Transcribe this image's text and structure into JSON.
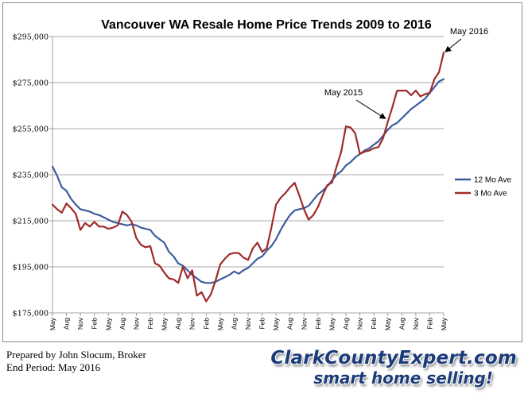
{
  "chart_data": {
    "type": "line",
    "title": "Vancouver WA Resale Home Price Trends 2009 to 2016",
    "xlabel": "",
    "ylabel": "",
    "ylim": [
      175000,
      295000
    ],
    "yticks": [
      "$175,000",
      "$195,000",
      "$215,000",
      "$235,000",
      "$255,000",
      "$275,000",
      "$295,000"
    ],
    "ytick_values": [
      175000,
      195000,
      215000,
      235000,
      255000,
      275000,
      295000
    ],
    "grid": true,
    "legend_position": "right",
    "x": [
      "May",
      "Jun",
      "Jul",
      "Aug",
      "Sep",
      "Oct",
      "Nov",
      "Dec",
      "Jan",
      "Feb",
      "Mar",
      "Apr",
      "May",
      "Jun",
      "Jul",
      "Aug",
      "Sep",
      "Oct",
      "Nov",
      "Dec",
      "Jan",
      "Feb",
      "Mar",
      "Apr",
      "May",
      "Jun",
      "Jul",
      "Aug",
      "Sep",
      "Oct",
      "Nov",
      "Dec",
      "Jan",
      "Feb",
      "Mar",
      "Apr",
      "May",
      "Jun",
      "Jul",
      "Aug",
      "Sep",
      "Oct",
      "Nov",
      "Dec",
      "Jan",
      "Feb",
      "Mar",
      "Apr",
      "May",
      "Jun",
      "Jul",
      "Aug",
      "Sep",
      "Oct",
      "Nov",
      "Dec",
      "Jan",
      "Feb",
      "Mar",
      "Apr",
      "May",
      "Jun",
      "Jul",
      "Aug",
      "Sep",
      "Oct",
      "Nov",
      "Dec",
      "Jan",
      "Feb",
      "Mar",
      "Apr",
      "May",
      "Jun",
      "Jul",
      "Aug",
      "Sep",
      "Oct",
      "Nov",
      "Dec",
      "Jan",
      "Feb",
      "Mar",
      "Apr",
      "May"
    ],
    "x_tick_labels": [
      "May",
      "Aug",
      "Nov",
      "Feb",
      "May",
      "Aug",
      "Nov",
      "Feb",
      "May",
      "Aug",
      "Nov",
      "Feb",
      "May",
      "Aug",
      "Nov",
      "Feb",
      "May",
      "Aug",
      "Nov",
      "Feb",
      "May",
      "Aug",
      "Nov",
      "Feb",
      "May",
      "Aug",
      "Nov",
      "Feb",
      "May"
    ],
    "series": [
      {
        "name": "12 Mo Ave",
        "color": "#3b5d9e",
        "values": [
          238500,
          234500,
          229500,
          228000,
          224500,
          222000,
          220000,
          219500,
          219000,
          218000,
          217500,
          216500,
          215500,
          214500,
          214000,
          213500,
          213000,
          213500,
          213000,
          212000,
          211500,
          211000,
          208500,
          207000,
          205500,
          201500,
          199500,
          196500,
          195500,
          193500,
          191500,
          190000,
          188500,
          188000,
          188000,
          188500,
          189500,
          190500,
          191500,
          193000,
          192000,
          193500,
          194500,
          196500,
          198500,
          199500,
          202000,
          204000,
          207000,
          211000,
          214500,
          217500,
          219500,
          220000,
          220500,
          221500,
          224000,
          226500,
          228000,
          230000,
          232500,
          235000,
          236500,
          239000,
          240500,
          242500,
          244000,
          245500,
          246500,
          248000,
          249500,
          252000,
          254500,
          256500,
          257500,
          259500,
          261500,
          263500,
          265000,
          266500,
          268000,
          270500,
          273000,
          275500,
          276500
        ]
      },
      {
        "name": "3 Mo Ave",
        "color": "#a02a2a",
        "values": [
          222000,
          220000,
          218500,
          222500,
          220500,
          218000,
          211000,
          214000,
          212500,
          214500,
          212500,
          212500,
          211500,
          212000,
          213000,
          219000,
          217500,
          214500,
          207500,
          204500,
          203500,
          204000,
          196500,
          195500,
          192500,
          190000,
          189500,
          188000,
          195000,
          190000,
          193500,
          182500,
          184000,
          180000,
          183000,
          189000,
          196000,
          198500,
          200500,
          201000,
          201000,
          199000,
          198000,
          203000,
          205500,
          201500,
          203000,
          212000,
          222000,
          225000,
          227000,
          229500,
          231500,
          226000,
          220000,
          215500,
          217500,
          221000,
          226000,
          230500,
          231500,
          238500,
          245000,
          256000,
          255500,
          253000,
          244000,
          245000,
          245500,
          246500,
          247000,
          251000,
          258000,
          264500,
          271500,
          271500,
          271500,
          269500,
          271500,
          269000,
          270000,
          270500,
          276500,
          279500,
          288000
        ]
      }
    ],
    "annotations": [
      {
        "text": "May 2015",
        "at_index": 72,
        "points_to": "3 Mo Ave"
      },
      {
        "text": "May 2016",
        "at_index": 84,
        "points_to": "3 Mo Ave"
      }
    ]
  },
  "footer": {
    "line1": "Prepared by John Slocum, Broker",
    "line2": "End Period: May 2016"
  },
  "brand": {
    "name": "ClarkCountyExpert.com",
    "tagline": "smart home selling!"
  }
}
